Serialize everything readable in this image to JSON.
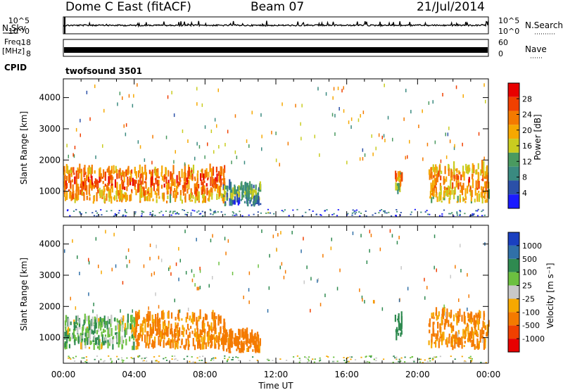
{
  "header": {
    "title": "Dome C East (fitACF)",
    "beam": "Beam 07",
    "date": "21/Jul/2014"
  },
  "top_panels": {
    "nsky_label": "N.Sky",
    "nsky_ticks": [
      "10^5",
      "10^0"
    ],
    "nsearch_label": "N.Search",
    "nsearch_ticks": [
      "10^5",
      "10^0"
    ],
    "freq_label": "Freq.",
    "freq_unit": "[MHz]",
    "freq_ticks": [
      "18",
      "8"
    ],
    "nave_label": "Nave",
    "nave_ticks": [
      "60",
      "0"
    ],
    "cpid_label": "CPID",
    "cpid_text": "twofsound 3501"
  },
  "colors": {
    "power_scale": [
      "#1a1aff",
      "#2b50a8",
      "#3a8a80",
      "#4a9a60",
      "#c9cc20",
      "#f6a800",
      "#f47a00",
      "#f04000",
      "#e80000"
    ],
    "velocity_scale": [
      "#e80000",
      "#f04000",
      "#f47a00",
      "#f6a800",
      "#c8c8c8",
      "#6cc040",
      "#2f8a50",
      "#3070a8",
      "#1a40c0"
    ]
  },
  "chart_data": [
    {
      "type": "heatmap",
      "title": "",
      "xlabel": "",
      "ylabel": "Slant Range [km]",
      "xlim": [
        "00:00",
        "24:00"
      ],
      "ylim": [
        180,
        4600
      ],
      "yticks": [
        1000,
        2000,
        3000,
        4000
      ],
      "colorbar": {
        "label": "Power [dB]",
        "range": [
          0,
          32
        ],
        "ticks": [
          "4",
          "8",
          "12",
          "16",
          "20",
          "24",
          "28"
        ]
      },
      "features": [
        {
          "region": "main-echo",
          "time_start_h": 0.0,
          "time_end_h": 9.1,
          "range_km": [
            600,
            1800
          ],
          "power_db": 26
        },
        {
          "region": "post-midnight-patch",
          "time_start_h": 9.0,
          "time_end_h": 11.1,
          "range_km": [
            500,
            1200
          ],
          "power_db": 14
        },
        {
          "region": "short-streak",
          "time_start_h": 18.7,
          "time_end_h": 19.1,
          "range_km": [
            900,
            1700
          ],
          "power_db": 22
        },
        {
          "region": "evening-echo",
          "time_start_h": 20.6,
          "time_end_h": 24.0,
          "range_km": [
            600,
            1900
          ],
          "power_db": 24
        },
        {
          "region": "near-range-clutter",
          "time_start_h": 0.0,
          "time_end_h": 24.0,
          "range_km": [
            180,
            420
          ],
          "power_db": 10
        }
      ]
    },
    {
      "type": "heatmap",
      "title": "",
      "xlabel": "Time UT",
      "ylabel": "Slant Range [km]",
      "xlim": [
        "00:00",
        "24:00"
      ],
      "ylim": [
        180,
        4600
      ],
      "xticks": [
        "00:00",
        "04:00",
        "08:00",
        "12:00",
        "16:00",
        "20:00",
        "00:00"
      ],
      "yticks": [
        1000,
        2000,
        3000,
        4000
      ],
      "colorbar": {
        "label": "Velocity [m s⁻¹]",
        "range": [
          -1000,
          1000
        ],
        "ticks": [
          "1000",
          "500",
          "100",
          "25",
          "-25",
          "-100",
          "-500",
          "-1000"
        ]
      },
      "features": [
        {
          "region": "main-echo-early",
          "time_start_h": 0.0,
          "time_end_h": 4.0,
          "range_km": [
            600,
            1700
          ],
          "velocity_ms": 60
        },
        {
          "region": "main-echo-late",
          "time_start_h": 4.0,
          "time_end_h": 9.1,
          "range_km": [
            600,
            1800
          ],
          "velocity_ms": -150
        },
        {
          "region": "post-midnight-patch",
          "time_start_h": 9.0,
          "time_end_h": 11.1,
          "range_km": [
            500,
            1200
          ],
          "velocity_ms": -200
        },
        {
          "region": "short-streak",
          "time_start_h": 18.7,
          "time_end_h": 19.1,
          "range_km": [
            900,
            1700
          ],
          "velocity_ms": 300
        },
        {
          "region": "evening-echo",
          "time_start_h": 20.6,
          "time_end_h": 24.0,
          "range_km": [
            600,
            1900
          ],
          "velocity_ms": -120
        },
        {
          "region": "near-range-clutter",
          "time_start_h": 0.0,
          "time_end_h": 24.0,
          "range_km": [
            180,
            420
          ],
          "velocity_ms": 40
        }
      ]
    }
  ]
}
